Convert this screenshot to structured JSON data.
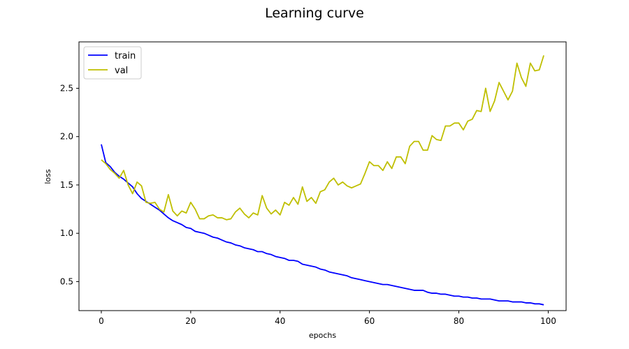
{
  "chart_data": {
    "type": "line",
    "title": "Learning curve",
    "xlabel": "epochs",
    "ylabel": "loss",
    "xlim": [
      -5,
      104
    ],
    "ylim": [
      0.2,
      2.98
    ],
    "xticks": [
      0,
      20,
      40,
      60,
      80,
      100
    ],
    "yticks": [
      0.5,
      1.0,
      1.5,
      2.0,
      2.5
    ],
    "xtick_labels": [
      "0",
      "20",
      "40",
      "60",
      "80",
      "100"
    ],
    "ytick_labels": [
      "0.5",
      "1.0",
      "1.5",
      "2.0",
      "2.5"
    ],
    "grid": false,
    "legend_position": "top-left",
    "x": [
      0,
      1,
      2,
      3,
      4,
      5,
      6,
      7,
      8,
      9,
      10,
      11,
      12,
      13,
      14,
      15,
      16,
      17,
      18,
      19,
      20,
      21,
      22,
      23,
      24,
      25,
      26,
      27,
      28,
      29,
      30,
      31,
      32,
      33,
      34,
      35,
      36,
      37,
      38,
      39,
      40,
      41,
      42,
      43,
      44,
      45,
      46,
      47,
      48,
      49,
      50,
      51,
      52,
      53,
      54,
      55,
      56,
      57,
      58,
      59,
      60,
      61,
      62,
      63,
      64,
      65,
      66,
      67,
      68,
      69,
      70,
      71,
      72,
      73,
      74,
      75,
      76,
      77,
      78,
      79,
      80,
      81,
      82,
      83,
      84,
      85,
      86,
      87,
      88,
      89,
      90,
      91,
      92,
      93,
      94,
      95,
      96,
      97,
      98,
      99
    ],
    "series": [
      {
        "name": "train",
        "color": "#0000ff",
        "values": [
          1.92,
          1.73,
          1.69,
          1.63,
          1.59,
          1.56,
          1.52,
          1.48,
          1.41,
          1.36,
          1.33,
          1.3,
          1.27,
          1.24,
          1.2,
          1.16,
          1.13,
          1.11,
          1.09,
          1.06,
          1.05,
          1.02,
          1.01,
          1.0,
          0.98,
          0.96,
          0.95,
          0.93,
          0.91,
          0.9,
          0.88,
          0.87,
          0.85,
          0.84,
          0.83,
          0.81,
          0.81,
          0.79,
          0.78,
          0.76,
          0.75,
          0.74,
          0.72,
          0.72,
          0.71,
          0.68,
          0.67,
          0.66,
          0.65,
          0.63,
          0.62,
          0.6,
          0.59,
          0.58,
          0.57,
          0.56,
          0.54,
          0.53,
          0.52,
          0.51,
          0.5,
          0.49,
          0.48,
          0.47,
          0.47,
          0.46,
          0.45,
          0.44,
          0.43,
          0.42,
          0.41,
          0.41,
          0.41,
          0.39,
          0.38,
          0.38,
          0.37,
          0.37,
          0.36,
          0.35,
          0.35,
          0.34,
          0.34,
          0.33,
          0.33,
          0.32,
          0.32,
          0.32,
          0.31,
          0.3,
          0.3,
          0.3,
          0.29,
          0.29,
          0.29,
          0.28,
          0.28,
          0.27,
          0.27,
          0.26
        ]
      },
      {
        "name": "val",
        "color": "#bfbf00",
        "values": [
          1.76,
          1.72,
          1.66,
          1.62,
          1.57,
          1.65,
          1.5,
          1.41,
          1.53,
          1.49,
          1.32,
          1.31,
          1.32,
          1.25,
          1.22,
          1.4,
          1.23,
          1.18,
          1.23,
          1.21,
          1.32,
          1.25,
          1.15,
          1.15,
          1.18,
          1.19,
          1.16,
          1.16,
          1.14,
          1.15,
          1.22,
          1.26,
          1.2,
          1.16,
          1.21,
          1.19,
          1.39,
          1.26,
          1.2,
          1.24,
          1.19,
          1.32,
          1.29,
          1.37,
          1.3,
          1.48,
          1.33,
          1.37,
          1.31,
          1.43,
          1.45,
          1.53,
          1.57,
          1.5,
          1.53,
          1.49,
          1.47,
          1.49,
          1.51,
          1.62,
          1.74,
          1.7,
          1.7,
          1.65,
          1.74,
          1.67,
          1.79,
          1.79,
          1.72,
          1.9,
          1.95,
          1.95,
          1.86,
          1.86,
          2.01,
          1.97,
          1.96,
          2.11,
          2.11,
          2.14,
          2.14,
          2.07,
          2.16,
          2.18,
          2.27,
          2.26,
          2.5,
          2.26,
          2.37,
          2.56,
          2.47,
          2.38,
          2.47,
          2.76,
          2.61,
          2.52,
          2.76,
          2.68,
          2.69,
          2.84
        ]
      }
    ]
  }
}
